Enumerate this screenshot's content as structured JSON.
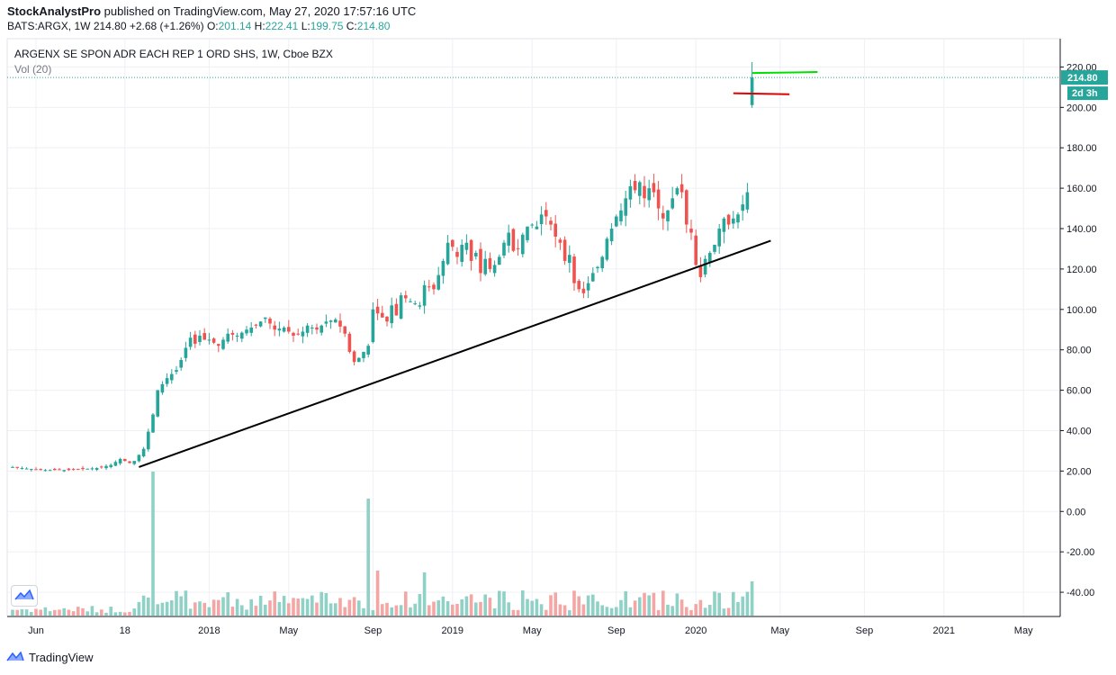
{
  "header": {
    "publisher": "StockAnalystPro",
    "published_text": " published on TradingView.com, May 27, 2020 17:57:16 UTC",
    "symbol_line": "BATS:ARGX, 1W",
    "last": "214.80",
    "change": "+2.68 (+1.26%)",
    "o_label": "O:",
    "o_value": "201.14",
    "h_label": "H:",
    "h_value": "222.41",
    "l_label": "L:",
    "l_value": "199.75",
    "c_label": "C:",
    "c_value": "214.80"
  },
  "legend": {
    "title": "ARGENX SE SPON ADR EACH REP 1 ORD SHS, 1W, Cboe BZX",
    "volume": "Vol (20)"
  },
  "footer": {
    "brand": "TradingView"
  },
  "icons": {
    "footer_logo": "tradingview-logo-icon",
    "chart_logo": "tradingview-logo-icon"
  },
  "colors": {
    "up": "#26a69a",
    "down": "#ef5350",
    "up_vol": "#8fd1c6",
    "down_vol": "#f3a6a4",
    "trend": "#000000",
    "green_line": "#00e000",
    "red_line": "#e00000"
  },
  "price_badge": {
    "value": "214.80",
    "countdown": "2d 3h"
  },
  "chart_data": {
    "type": "candlestick",
    "y_ticks": [
      "220.00",
      "200.00",
      "180.00",
      "160.00",
      "140.00",
      "120.00",
      "100.00",
      "80.00",
      "60.00",
      "40.00",
      "20.00",
      "0.00",
      "-20.00",
      "-40.00"
    ],
    "y_tick_values": [
      220,
      200,
      180,
      160,
      140,
      120,
      100,
      80,
      60,
      40,
      20,
      0,
      -20,
      -40
    ],
    "ylim": [
      -52,
      234
    ],
    "x_ticks": [
      {
        "label": "Jun",
        "week": 5
      },
      {
        "label": "18",
        "week": 24
      },
      {
        "label": "2018",
        "week": 42
      },
      {
        "label": "May",
        "week": 59
      },
      {
        "label": "Sep",
        "week": 77
      },
      {
        "label": "2019",
        "week": 94
      },
      {
        "label": "May",
        "week": 111
      },
      {
        "label": "Sep",
        "week": 129
      },
      {
        "label": "2020",
        "week": 146
      },
      {
        "label": "May",
        "week": 164
      },
      {
        "label": "Sep",
        "week": 182
      },
      {
        "label": "2021",
        "week": 199
      },
      {
        "label": "May",
        "week": 216
      }
    ],
    "week_count": 221,
    "closes": [
      [
        0,
        22
      ],
      [
        6,
        20.5
      ],
      [
        12,
        20.5
      ],
      [
        18,
        21.5
      ],
      [
        21,
        23
      ],
      [
        23,
        26
      ],
      [
        25,
        24
      ],
      [
        26,
        25
      ],
      [
        28,
        31
      ],
      [
        30,
        48
      ],
      [
        31,
        60
      ],
      [
        32,
        63
      ],
      [
        33,
        66
      ],
      [
        35,
        70
      ],
      [
        36,
        75
      ],
      [
        37,
        81
      ],
      [
        38,
        86
      ],
      [
        39,
        83
      ],
      [
        40,
        87
      ],
      [
        41,
        85
      ],
      [
        42,
        85
      ],
      [
        44,
        82
      ],
      [
        46,
        88
      ],
      [
        48,
        87
      ],
      [
        50,
        90
      ],
      [
        52,
        92
      ],
      [
        54,
        96
      ],
      [
        56,
        90
      ],
      [
        58,
        91
      ],
      [
        60,
        87
      ],
      [
        62,
        89
      ],
      [
        63,
        92
      ],
      [
        65,
        90
      ],
      [
        67,
        94
      ],
      [
        69,
        95
      ],
      [
        71,
        88
      ],
      [
        72,
        79
      ],
      [
        73,
        74
      ],
      [
        74,
        76
      ],
      [
        76,
        82
      ],
      [
        77,
        100
      ],
      [
        78,
        98
      ],
      [
        79,
        96
      ],
      [
        80,
        94
      ],
      [
        81,
        102
      ],
      [
        82,
        97
      ],
      [
        83,
        107
      ],
      [
        85,
        104
      ],
      [
        87,
        102
      ],
      [
        88,
        112
      ],
      [
        90,
        110
      ],
      [
        92,
        124
      ],
      [
        93,
        133
      ],
      [
        94,
        131
      ],
      [
        95,
        126
      ],
      [
        96,
        132
      ],
      [
        97,
        133
      ],
      [
        98,
        124
      ],
      [
        99,
        128
      ],
      [
        100,
        118
      ],
      [
        101,
        125
      ],
      [
        102,
        120
      ],
      [
        103,
        122
      ],
      [
        104,
        126
      ],
      [
        105,
        133
      ],
      [
        106,
        138
      ],
      [
        107,
        129
      ],
      [
        108,
        130
      ],
      [
        109,
        137
      ],
      [
        110,
        141
      ],
      [
        111,
        142
      ],
      [
        112,
        141
      ],
      [
        113,
        147
      ],
      [
        114,
        146
      ],
      [
        115,
        142
      ],
      [
        116,
        136
      ],
      [
        117,
        133
      ],
      [
        118,
        124
      ],
      [
        119,
        127
      ],
      [
        120,
        113
      ],
      [
        121,
        110
      ],
      [
        122,
        108
      ],
      [
        123,
        113
      ],
      [
        124,
        118
      ],
      [
        125,
        121
      ],
      [
        126,
        126
      ],
      [
        127,
        135
      ],
      [
        128,
        140
      ],
      [
        129,
        146
      ],
      [
        130,
        149
      ],
      [
        131,
        155
      ],
      [
        132,
        161
      ],
      [
        133,
        159
      ],
      [
        134,
        163
      ],
      [
        135,
        155
      ],
      [
        136,
        160
      ],
      [
        137,
        158
      ],
      [
        138,
        150
      ],
      [
        139,
        145
      ],
      [
        140,
        149
      ],
      [
        141,
        155
      ],
      [
        142,
        160
      ],
      [
        143,
        158
      ],
      [
        144,
        142
      ],
      [
        145,
        138
      ],
      [
        146,
        122
      ],
      [
        147,
        116
      ],
      [
        148,
        125
      ],
      [
        149,
        128
      ],
      [
        150,
        132
      ],
      [
        151,
        140
      ],
      [
        152,
        145
      ],
      [
        153,
        142
      ],
      [
        154,
        145
      ],
      [
        155,
        147
      ],
      [
        156,
        152
      ],
      [
        157,
        158
      ],
      [
        158,
        214.8
      ]
    ],
    "trendline": {
      "from": {
        "week": 27,
        "value": 22
      },
      "to": {
        "week": 162,
        "value": 134
      }
    },
    "annotation_lines": [
      {
        "color": "green",
        "from": {
          "week": 158,
          "value": 217
        },
        "to": {
          "week": 172,
          "value": 217.5
        }
      },
      {
        "color": "red",
        "from": {
          "week": 154,
          "value": 207
        },
        "to": {
          "week": 166,
          "value": 206.5
        }
      }
    ],
    "last_price_line": 214.8,
    "grid": true
  }
}
